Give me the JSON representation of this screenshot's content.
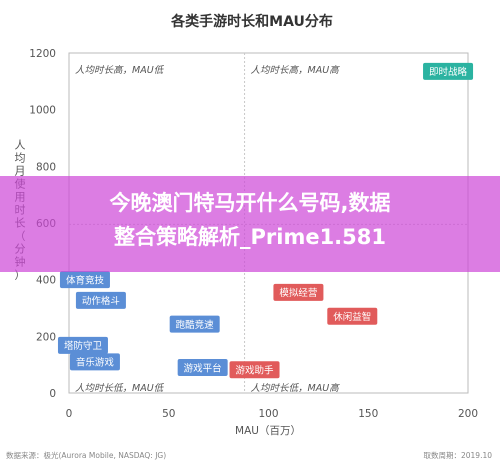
{
  "chart_data": {
    "type": "scatter",
    "title": "各类手游时长和MAU分布",
    "xlabel": "MAU（百万）",
    "ylabel": "人均月使用时长（分钟）",
    "xlim": [
      0,
      200
    ],
    "ylim": [
      0,
      1200
    ],
    "xticks": [
      "0",
      "50",
      "100",
      "150",
      "200"
    ],
    "yticks": [
      "0",
      "200",
      "400",
      "600",
      "800",
      "1000",
      "1200"
    ],
    "divider_x": 88,
    "divider_y": 595,
    "quadrant_labels": [
      {
        "text": "人均时长高，MAU低",
        "corner": "top-left"
      },
      {
        "text": "人均时长高，MAU高",
        "corner": "top-right"
      },
      {
        "text": "人均时长低，MAU低",
        "corner": "bottom-left"
      },
      {
        "text": "人均时长低，MAU高",
        "corner": "bottom-right"
      }
    ],
    "points": [
      {
        "label": "即时战略",
        "x": 190,
        "y": 1135,
        "color": "#2bb3a1"
      },
      {
        "label": "体育竞技",
        "x": 8,
        "y": 400,
        "color": "#5b8ed6"
      },
      {
        "label": "动作格斗",
        "x": 16,
        "y": 327,
        "color": "#5b8ed6"
      },
      {
        "label": "塔防守卫",
        "x": 7,
        "y": 168,
        "color": "#5b8ed6"
      },
      {
        "label": "音乐游戏",
        "x": 13,
        "y": 110,
        "color": "#5b8ed6"
      },
      {
        "label": "跑酷竞速",
        "x": 63,
        "y": 243,
        "color": "#5b8ed6"
      },
      {
        "label": "游戏平台",
        "x": 67,
        "y": 90,
        "color": "#5b8ed6"
      },
      {
        "label": "模拟经营",
        "x": 115,
        "y": 355,
        "color": "#e15b5b"
      },
      {
        "label": "休闲益智",
        "x": 142,
        "y": 271,
        "color": "#e15b5b"
      },
      {
        "label": "游戏助手",
        "x": 93,
        "y": 82,
        "color": "#e15b5b"
      }
    ],
    "source": "数据来源：极光(Aurora Mobile, NASDAQ: JG)",
    "date": "取数周期：2019.10"
  },
  "overlay": {
    "line1": "今晚澳门特马开什么号码,数据",
    "line2": "整合策略解析_Prime1.581"
  },
  "colors": {
    "overlay": "#cd46d7",
    "blue": "#5b8ed6",
    "red": "#e15b5b",
    "teal": "#2bb3a1"
  }
}
